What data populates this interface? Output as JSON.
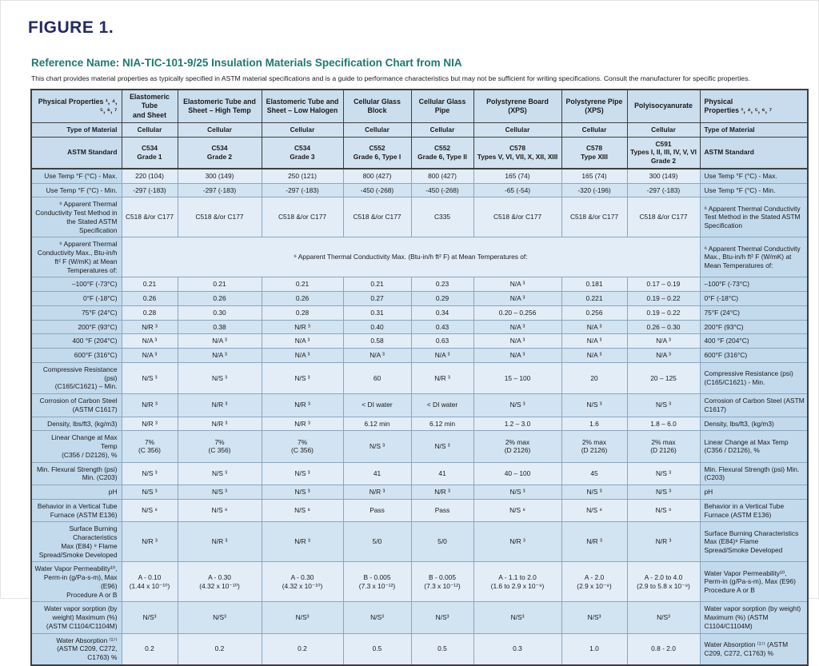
{
  "figure_label": "FIGURE 1.",
  "reference_title": "Reference Name: NIA-TIC-101-9/25 Insulation Materials Specification Chart from NIA",
  "disclaimer": "This chart provides material properties as typically specified in ASTM material specifications and is a guide to performance characteristics but may not be sufficient for writing specifications. Consult the manufacturer for specific properties.",
  "colors": {
    "figure_label": "#252a63",
    "reference_title": "#1d7a6e",
    "label_cell_bg": "#c3daed",
    "header_cell_bg": "#cbdeee",
    "row_light_bg": "#e2edf8",
    "row_dark_bg": "#d2e3f1",
    "border_dark": "#3f3f3f",
    "border_light": "#8ba6bd"
  },
  "table": {
    "rows": [
      {
        "cls": "hdr",
        "label": "Physical Properties ¹, ⁴, ⁵, ⁶, ⁷",
        "label_right": "Physical\nProperties ¹, ⁴, ⁵, ⁶, ⁷",
        "cells": [
          "Elastomeric Tube\nand Sheet",
          "Elastomeric Tube and\nSheet – High Temp",
          "Elastomeric Tube and\nSheet – Low Halogen",
          "Cellular Glass Block",
          "Cellular Glass Pipe",
          "Polystyrene Board (XPS)",
          "Polystyrene Pipe\n(XPS)",
          "Polyisocyanurate"
        ]
      },
      {
        "cls": "typ",
        "label": "Type of Material",
        "cells": [
          "Cellular",
          "Cellular",
          "Cellular",
          "Cellular",
          "Cellular",
          "Cellular",
          "Cellular",
          "Cellular"
        ]
      },
      {
        "cls": "astm",
        "label": "ASTM Standard",
        "cells": [
          "C534\nGrade 1",
          "C534\nGrade 2",
          "C534\nGrade 3",
          "C552\nGrade 6, Type I",
          "C552\nGrade 6, Type II",
          "C578\nTypes V, VI, VII, X, XII, XIII",
          "C578\nType XIII",
          "C591\nTypes I, II, III, IV, V, VI\nGrade 2"
        ]
      },
      {
        "cls": "r-light",
        "label": "Use Temp °F (°C) - Max.",
        "cells": [
          "220 (104)",
          "300 (149)",
          "250 (121)",
          "800 (427)",
          "800 (427)",
          "165 (74)",
          "165 (74)",
          "300 (149)"
        ]
      },
      {
        "cls": "r-dark",
        "label": "Use Temp °F (°C) - Min.",
        "cells": [
          "-297 (-183)",
          "-297 (-183)",
          "-297 (-183)",
          "-450 (-268)",
          "-450 (-268)",
          "-65 (-54)",
          "-320 (-196)",
          "-297 (-183)"
        ]
      },
      {
        "cls": "r-light",
        "label": "⁶ Apparent Thermal Conductivity Test Method in the Stated ASTM Specification",
        "label_right": "⁶ Apparent Thermal Conductivity Test Method in the Stated ASTM Specification",
        "cells": [
          "C518 &/or C177",
          "C518 &/or C177",
          "C518 &/or C177",
          "C518 &/or C177",
          "C335",
          "C518 &/or C177",
          "C518 &/or C177",
          "C518 &/or C177"
        ]
      },
      {
        "cls": "r-light",
        "label": "⁶ Apparent Thermal Conductivity Max., Btu-in/h ft² F (W/mK) at Mean Temperatures of:",
        "span": "⁶ Apparent Thermal Conductivity Max.  (Btu-in/h ft² F) at Mean Temperatures of:"
      },
      {
        "cls": "r-light",
        "label": "–100°F (-73°C)",
        "cells": [
          "0.21",
          "0.21",
          "0.21",
          "0.21",
          "0.23",
          "N/A ³",
          "0.181",
          "0.17 – 0.19"
        ]
      },
      {
        "cls": "r-dark",
        "label": "0°F (-18°C)",
        "cells": [
          "0.26",
          "0.26",
          "0.26",
          "0.27",
          "0.29",
          "N/A ³",
          "0.221",
          "0.19 – 0.22"
        ]
      },
      {
        "cls": "r-light",
        "label": "75°F (24°C)",
        "cells": [
          "0.28",
          "0.30",
          "0.28",
          "0.31",
          "0.34",
          "0.20 – 0.256",
          "0.256",
          "0.19 – 0.22"
        ]
      },
      {
        "cls": "r-dark",
        "label": "200°F (93°C)",
        "cells": [
          "N/R ³",
          "0.38",
          "N/R ³",
          "0.40",
          "0.43",
          "N/A ³",
          "N/A ³",
          "0.26 – 0.30"
        ]
      },
      {
        "cls": "r-light",
        "label": "400 °F (204°C)",
        "cells": [
          "N/A ³",
          "N/A ³",
          "N/A ³",
          "0.58",
          "0.63",
          "N/A ³",
          "N/A ³",
          "N/A ³"
        ]
      },
      {
        "cls": "r-dark",
        "label": "600°F (316°C)",
        "cells": [
          "N/A ³",
          "N/A ³",
          "N/A ³",
          "N/A ³",
          "N/A ³",
          "N/A ³",
          "N/A ³",
          "N/A ³"
        ]
      },
      {
        "cls": "r-light",
        "label": "Compressive Resistance (psi)\n(C165/C1621) – Min.",
        "label_right": "Compressive Resistance (psi) (C165/C1621) - Min.",
        "cells": [
          "N/S ³",
          "N/S ³",
          "N/S ³",
          "60",
          "N/R ³",
          "15 – 100",
          "20",
          "20 – 125"
        ]
      },
      {
        "cls": "r-dark",
        "label": "Corrosion of Carbon Steel\n(ASTM C1617)",
        "label_right": "Corrosion of Carbon Steel (ASTM C1617)",
        "cells": [
          "N/R ³",
          "N/R ³",
          "N/R ³",
          "< DI water",
          "< DI water",
          "N/S ³",
          "N/S ³",
          "N/S ³"
        ]
      },
      {
        "cls": "r-light",
        "label": "Density, lbs/ft3, (kg/m3)",
        "cells": [
          "N/R ³",
          "N/R ³",
          "N/R ³",
          "6.12 min",
          "6.12 min",
          "1.2 – 3.0",
          "1.6",
          "1.8 – 6.0"
        ]
      },
      {
        "cls": "r-dark",
        "label": "Linear Change at Max Temp\n(C356 / D2126), %",
        "label_right": "Linear Change at Max Temp (C356 / D2126), %",
        "cells": [
          "7%\n(C 356)",
          "7%\n(C 356)",
          "7%\n(C 356)",
          "N/S ³",
          "N/S ³",
          "2% max\n(D 2126)",
          "2% max\n(D 2126)",
          "2% max\n(D 2126)"
        ]
      },
      {
        "cls": "r-light",
        "label": "Min. Flexural Strength (psi)\nMin. (C203)",
        "label_right": "Min. Flexural Strength (psi) Min. (C203)",
        "cells": [
          "N/S ³",
          "N/S ³",
          "N/S ³",
          "41",
          "41",
          "40 – 100",
          "45",
          "N/S ³"
        ]
      },
      {
        "cls": "r-dark",
        "label": "pH",
        "cells": [
          "N/S ³",
          "N/S ³",
          "N/S ³",
          "N/R ³",
          "N/R ³",
          "N/S ³",
          "N/S ³",
          "N/S ³"
        ]
      },
      {
        "cls": "r-light",
        "label": "Behavior in a Vertical Tube\nFurnace (ASTM E136)",
        "label_right": "Behavior in a Vertical Tube Furnace (ASTM E136)",
        "cells": [
          "N/S ⁸",
          "N/S ⁸",
          "N/S ⁸",
          "Pass",
          "Pass",
          "N/S ⁸",
          "N/S ⁸",
          "N/S ⁸"
        ]
      },
      {
        "cls": "r-dark",
        "label": "Surface Burning Characteristics\nMax (E84) ⁹ Flame\nSpread/Smoke Developed",
        "label_right": "Surface Burning Characteristics Max (E84)⁹ Flame Spread/Smoke Developed",
        "cells": [
          "N/R ³",
          "N/R ³",
          "N/R ³",
          "5/0",
          "5/0",
          "N/R ³",
          "N/R ³",
          "N/R ³"
        ]
      },
      {
        "cls": "r-light",
        "label": "Water Vapor Permeability¹⁰,\nPerm-in (g/Pa-s-m), Max (E96)\nProcedure A or B",
        "label_right": "Water Vapor Permeability¹⁰, Perm-in (g/Pa-s-m), Max (E96) Procedure A or B",
        "cells": [
          "A - 0.10\n(1.44 x 10⁻¹⁰)",
          "A - 0.30\n(4.32 x 10⁻¹⁰)",
          "A - 0.30\n(4.32 x 10⁻¹⁰)",
          "B - 0.005\n(7.3 x 10⁻¹²)",
          "B - 0.005\n(7.3 x 10⁻¹²)",
          "A - 1.1 to 2.0\n(1.6 to 2.9 x 10⁻⁹)",
          "A - 2.0\n(2.9 x 10⁻⁹)",
          "A - 2.0 to 4.0\n(2.9 to 5.8 x 10⁻⁹)"
        ]
      },
      {
        "cls": "r-dark",
        "label": "Water vapor sorption (by\nweight) Maximum (%)\n(ASTM C1104/C1104M)",
        "label_right": "Water vapor sorption (by weight) Maximum (%) (ASTM C1104/C1104M)",
        "cells": [
          "N/S³",
          "N/S³",
          "N/S³",
          "N/S³",
          "N/S³",
          "N/S³",
          "N/S³",
          "N/S³"
        ]
      },
      {
        "cls": "r-light",
        "label": "Water Absorption ⁽¹⁷⁾\n(ASTM C209, C272, C1763) %",
        "label_right": "Water Absorption ⁽¹⁷⁾ (ASTM C209, C272, C1763) %",
        "cells": [
          "0.2",
          "0.2",
          "0.2",
          "0.5",
          "0.5",
          "0.3",
          "1.0",
          "0.8 - 2.0"
        ]
      }
    ]
  }
}
